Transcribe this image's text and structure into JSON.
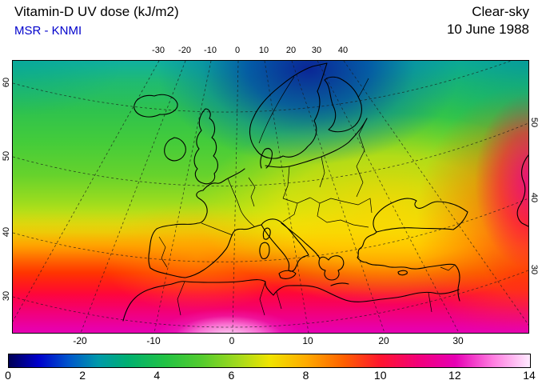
{
  "header": {
    "title": "Vitamin-D UV dose (kJ/m2)",
    "source": "MSR - KNMI",
    "source_color": "#0000cc",
    "condition": "Clear-sky",
    "date": "10 June 1988"
  },
  "map": {
    "axes": {
      "top": [
        "-30",
        "-20",
        "-10",
        "0",
        "10",
        "20",
        "30",
        "40"
      ],
      "left": [
        "60",
        "50",
        "40",
        "30"
      ],
      "right": [
        "50",
        "40",
        "30"
      ],
      "bottom": [
        "-20",
        "-10",
        "0",
        "10",
        "20",
        "30"
      ]
    }
  },
  "colorbar": {
    "min": 0,
    "max": 14,
    "unit": "kJ/m2",
    "tick_labels": [
      "0",
      "2",
      "4",
      "6",
      "8",
      "10",
      "12",
      "14"
    ],
    "stops": [
      {
        "value": 0,
        "color": "#000055"
      },
      {
        "value": 0.8,
        "color": "#0000cc"
      },
      {
        "value": 1.6,
        "color": "#0055cc"
      },
      {
        "value": 2.4,
        "color": "#0099aa"
      },
      {
        "value": 3.2,
        "color": "#00b070"
      },
      {
        "value": 4.2,
        "color": "#22c244"
      },
      {
        "value": 5.2,
        "color": "#55cc2e"
      },
      {
        "value": 6.2,
        "color": "#a6da1c"
      },
      {
        "value": 7,
        "color": "#f0e400"
      },
      {
        "value": 8,
        "color": "#ffaa00"
      },
      {
        "value": 9,
        "color": "#ff6000"
      },
      {
        "value": 10,
        "color": "#ff1430"
      },
      {
        "value": 11,
        "color": "#f2007a"
      },
      {
        "value": 12,
        "color": "#e600b4"
      },
      {
        "value": 13,
        "color": "#ff7ce0"
      },
      {
        "value": 14,
        "color": "#ffeaff"
      }
    ]
  },
  "chart_data": {
    "type": "heatmap",
    "title": "Vitamin-D UV dose (kJ/m2)",
    "condition": "Clear-sky",
    "date": "10 June 1988",
    "source": "MSR - KNMI",
    "region": "Europe and North Africa",
    "projection": "conic, dashed graticule every 10 degrees",
    "lon_ticks_top": [
      -30,
      -20,
      -10,
      0,
      10,
      20,
      30,
      40
    ],
    "lon_ticks_bottom": [
      -20,
      -10,
      0,
      10,
      20,
      30
    ],
    "lat_ticks_left": [
      60,
      50,
      40,
      30
    ],
    "lat_ticks_right": [
      50,
      40,
      30
    ],
    "scale_min": 0,
    "scale_max": 14,
    "scale_ticks": [
      0,
      2,
      4,
      6,
      8,
      10,
      12,
      14
    ],
    "scale_unit": "kJ/m2",
    "field_summary": [
      {
        "area": "Scandinavia / Baltic",
        "value_kj_m2": "1-3"
      },
      {
        "area": "North Atlantic / Iceland / British Isles",
        "value_kj_m2": "4-5"
      },
      {
        "area": "Central Europe",
        "value_kj_m2": "5-7"
      },
      {
        "area": "Iberia / Balkans / Black Sea",
        "value_kj_m2": "7-9"
      },
      {
        "area": "Mediterranean / Turkey",
        "value_kj_m2": "9-11"
      },
      {
        "area": "North Africa / Middle East",
        "value_kj_m2": "11-13"
      },
      {
        "area": "Sahara maximum (bottom centre)",
        "value_kj_m2": "13-14"
      }
    ]
  }
}
